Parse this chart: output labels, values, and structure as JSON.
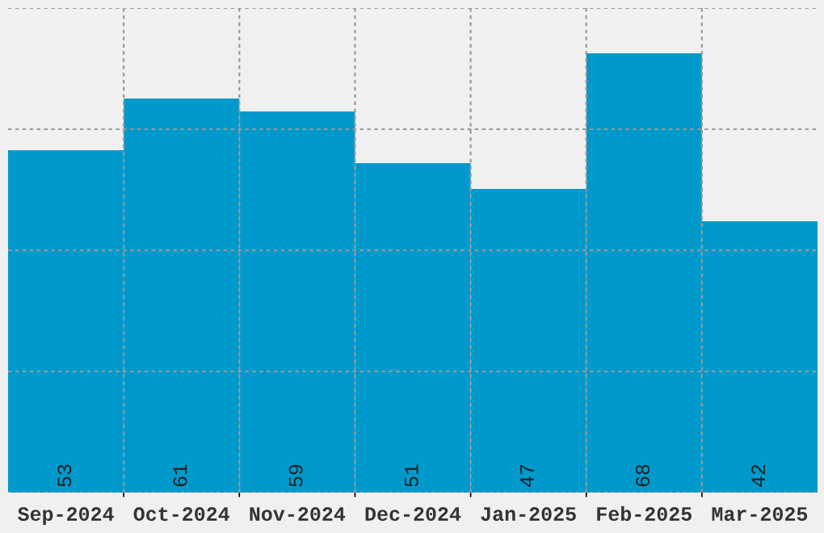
{
  "chart_data": {
    "type": "bar",
    "categories": [
      "Sep-2024",
      "Oct-2024",
      "Nov-2024",
      "Dec-2024",
      "Jan-2025",
      "Feb-2025",
      "Mar-2025"
    ],
    "values": [
      53,
      61,
      59,
      51,
      47,
      68,
      42
    ],
    "color": "#0099cc",
    "ylim": [
      0,
      75
    ],
    "yticks": [
      {
        "value": 0,
        "label": null
      },
      {
        "value": 18.75,
        "label": null
      },
      {
        "value": 37.5,
        "label": null
      },
      {
        "value": 56.25,
        "label": null
      },
      {
        "value": 75,
        "label": null
      }
    ],
    "tick_labels": "x",
    "grid": true,
    "data_labels": true
  }
}
